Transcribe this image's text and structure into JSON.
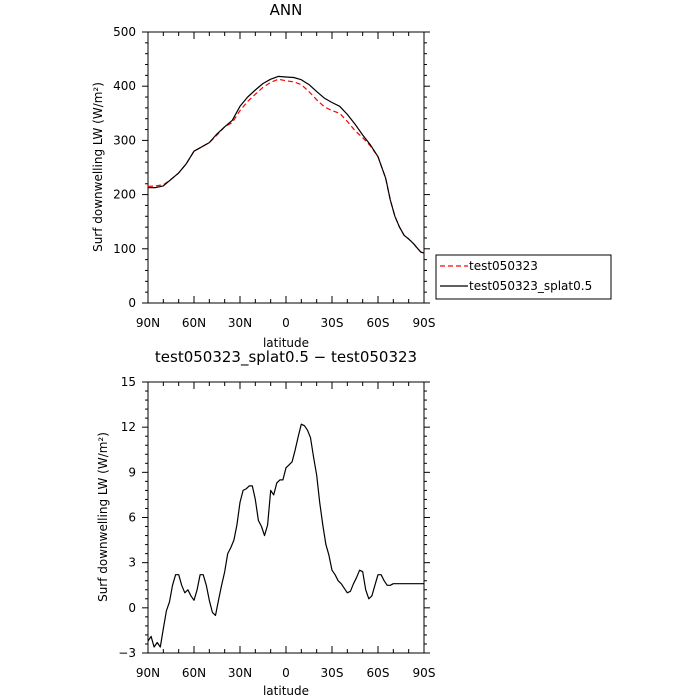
{
  "chart_data": [
    {
      "type": "line",
      "title": "ANN",
      "xlabel": "latitude",
      "ylabel": "Surf downwelling LW (W/m²)",
      "xlim": [
        90,
        -90
      ],
      "ylim": [
        0,
        500
      ],
      "x_ticks": [
        90,
        60,
        30,
        0,
        -30,
        -60,
        -90
      ],
      "x_tick_labels": [
        "90N",
        "60N",
        "30N",
        "0",
        "30S",
        "60S",
        "90S"
      ],
      "y_ticks": [
        0,
        100,
        200,
        300,
        400,
        500
      ],
      "y_tick_labels": [
        "0",
        "100",
        "200",
        "300",
        "400",
        "500"
      ],
      "legend": "right-outside",
      "series": [
        {
          "name": "test050323",
          "color": "#ff0000",
          "dash": "dashed",
          "x": [
            90,
            85,
            80,
            75,
            70,
            65,
            60,
            55,
            50,
            45,
            40,
            35,
            30,
            25,
            20,
            15,
            10,
            5,
            0,
            -5,
            -10,
            -15,
            -20,
            -25,
            -30,
            -35,
            -40,
            -45,
            -50,
            -55,
            -60,
            -65,
            -68,
            -71,
            -74,
            -77,
            -80,
            -83,
            -86,
            -88,
            -90
          ],
          "y": [
            215,
            216,
            218,
            228,
            240,
            257,
            280,
            288,
            296,
            310,
            325,
            333,
            355,
            372,
            385,
            398,
            407,
            413,
            410,
            408,
            403,
            390,
            375,
            362,
            355,
            350,
            335,
            318,
            305,
            290,
            270,
            230,
            190,
            160,
            140,
            125,
            118,
            110,
            100,
            94,
            92
          ]
        },
        {
          "name": "test050323_splat0.5",
          "color": "#000000",
          "dash": "solid",
          "x": [
            90,
            85,
            80,
            75,
            70,
            65,
            60,
            55,
            50,
            45,
            40,
            35,
            30,
            25,
            20,
            15,
            10,
            5,
            0,
            -5,
            -10,
            -15,
            -20,
            -25,
            -30,
            -35,
            -40,
            -45,
            -50,
            -55,
            -60,
            -65,
            -68,
            -71,
            -74,
            -77,
            -80,
            -83,
            -86,
            -88,
            -90
          ],
          "y": [
            213,
            213,
            216,
            228,
            240,
            257,
            280,
            288,
            296,
            312,
            325,
            337,
            363,
            380,
            393,
            405,
            413,
            418,
            417,
            416,
            412,
            403,
            390,
            378,
            370,
            363,
            348,
            330,
            310,
            292,
            270,
            230,
            190,
            160,
            140,
            125,
            118,
            110,
            100,
            94,
            92
          ]
        }
      ]
    },
    {
      "type": "line",
      "title": "test050323_splat0.5 − test050323",
      "xlabel": "latitude",
      "ylabel": "Surf downwelling LW (W/m²)",
      "xlim": [
        90,
        -90
      ],
      "ylim": [
        -3,
        15
      ],
      "x_ticks": [
        90,
        60,
        30,
        0,
        -30,
        -60,
        -90
      ],
      "x_tick_labels": [
        "90N",
        "60N",
        "30N",
        "0",
        "30S",
        "60S",
        "90S"
      ],
      "y_ticks": [
        -3,
        0,
        3,
        6,
        9,
        12,
        15
      ],
      "y_tick_labels": [
        "−3",
        "0",
        "3",
        "6",
        "9",
        "12",
        "15"
      ],
      "series": [
        {
          "color": "#000000",
          "dash": "solid",
          "x": [
            90,
            88,
            86,
            84,
            82,
            80,
            78,
            76,
            74,
            72,
            70,
            68,
            66,
            64,
            62,
            60,
            58,
            56,
            54,
            52,
            50,
            48,
            46,
            44,
            42,
            40,
            38,
            36,
            34,
            32,
            30,
            28,
            26,
            24,
            22,
            20,
            18,
            16,
            14,
            12,
            10,
            8,
            6,
            4,
            2,
            0,
            -2,
            -4,
            -6,
            -8,
            -10,
            -12,
            -14,
            -16,
            -18,
            -20,
            -22,
            -24,
            -26,
            -28,
            -30,
            -32,
            -34,
            -36,
            -38,
            -40,
            -42,
            -44,
            -46,
            -48,
            -50,
            -52,
            -54,
            -56,
            -58,
            -60,
            -62,
            -64,
            -66,
            -68,
            -70,
            -72,
            -74,
            -76,
            -78,
            -80,
            -82,
            -84,
            -86,
            -88,
            -90
          ],
          "y": [
            -2.2,
            -1.9,
            -2.6,
            -2.3,
            -2.6,
            -1.4,
            -0.2,
            0.4,
            1.5,
            2.2,
            2.2,
            1.5,
            1.0,
            1.2,
            0.8,
            0.5,
            1.2,
            2.2,
            2.2,
            1.5,
            0.5,
            -0.3,
            -0.5,
            0.5,
            1.5,
            2.4,
            3.6,
            4.0,
            4.5,
            5.5,
            7.0,
            7.8,
            7.9,
            8.1,
            8.1,
            7.2,
            5.8,
            5.4,
            4.8,
            5.5,
            7.8,
            7.5,
            8.3,
            8.5,
            8.5,
            9.3,
            9.5,
            9.7,
            10.5,
            11.4,
            12.2,
            12.1,
            11.8,
            11.3,
            10.0,
            8.8,
            7.0,
            5.5,
            4.2,
            3.5,
            2.5,
            2.2,
            1.8,
            1.6,
            1.3,
            1.0,
            1.1,
            1.6,
            2.0,
            2.5,
            2.4,
            1.2,
            0.6,
            0.8,
            1.5,
            2.2,
            2.2,
            1.8,
            1.5,
            1.5,
            1.6,
            1.6,
            1.6,
            1.6,
            1.6,
            1.6,
            1.6,
            1.6,
            1.6,
            1.6,
            1.6
          ]
        }
      ]
    }
  ]
}
